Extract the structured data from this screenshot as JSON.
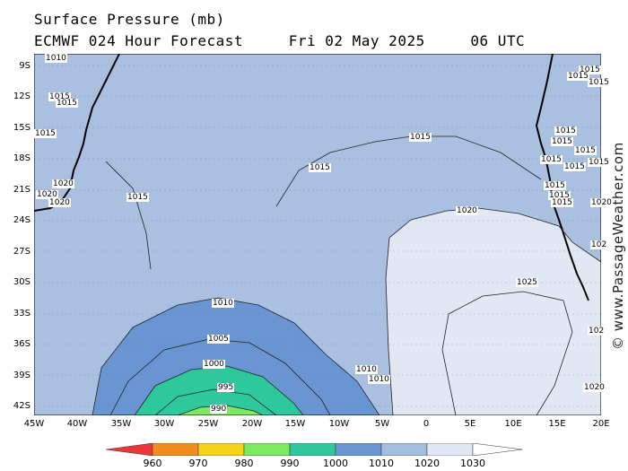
{
  "title": {
    "line1": "Surface Pressure (mb)",
    "line2": "ECMWF 024 Hour Forecast     Fri 02 May 2025     06 UTC"
  },
  "watermark": "© www.PassageWeather.com",
  "axes": {
    "lat_labels": [
      "9S",
      "12S",
      "15S",
      "18S",
      "21S",
      "24S",
      "27S",
      "30S",
      "33S",
      "36S",
      "39S",
      "42S"
    ],
    "lon_labels": [
      "45W",
      "40W",
      "35W",
      "30W",
      "25W",
      "20W",
      "15W",
      "10W",
      "5W",
      "0",
      "5E",
      "10E",
      "15E",
      "20E"
    ]
  },
  "colorbar": {
    "labels": [
      "960",
      "970",
      "980",
      "990",
      "1000",
      "1010",
      "1020",
      "1030"
    ],
    "colors": [
      "#e8383a",
      "#f28c1c",
      "#f7d21c",
      "#7bea61",
      "#2ec99a",
      "#6a95d3",
      "#a2bde0",
      "#e1e8f4"
    ]
  },
  "isobar_labels": [
    {
      "text": "1010",
      "id": "a"
    },
    {
      "text": "1015",
      "id": "b"
    },
    {
      "text": "1015",
      "id": "c"
    },
    {
      "text": "1015",
      "id": "d"
    },
    {
      "text": "1020",
      "id": "e"
    },
    {
      "text": "1020",
      "id": "f"
    },
    {
      "text": "1020",
      "id": "g"
    },
    {
      "text": "1015",
      "id": "h"
    },
    {
      "text": "1015",
      "id": "i"
    },
    {
      "text": "1015",
      "id": "j"
    },
    {
      "text": "1020",
      "id": "k"
    },
    {
      "text": "1025",
      "id": "l"
    },
    {
      "text": "1010",
      "id": "m"
    },
    {
      "text": "1005",
      "id": "n"
    },
    {
      "text": "1000",
      "id": "o"
    },
    {
      "text": "995",
      "id": "p"
    },
    {
      "text": "990",
      "id": "q"
    },
    {
      "text": "1010",
      "id": "r"
    },
    {
      "text": "1010",
      "id": "s"
    },
    {
      "text": "1015",
      "id": "t"
    },
    {
      "text": "1015",
      "id": "u"
    },
    {
      "text": "1015",
      "id": "v"
    },
    {
      "text": "1015",
      "id": "w"
    },
    {
      "text": "1015",
      "id": "x"
    },
    {
      "text": "1015",
      "id": "y"
    },
    {
      "text": "1015",
      "id": "z"
    },
    {
      "text": "1015",
      "id": "aa"
    },
    {
      "text": "1020",
      "id": "ab"
    },
    {
      "text": "102",
      "id": "ac"
    },
    {
      "text": "102",
      "id": "ad"
    },
    {
      "text": "1020",
      "id": "ae"
    },
    {
      "text": "1015",
      "id": "af"
    },
    {
      "text": "1015",
      "id": "ag"
    },
    {
      "text": "1015",
      "id": "ah"
    },
    {
      "text": "1015",
      "id": "ai"
    }
  ]
}
